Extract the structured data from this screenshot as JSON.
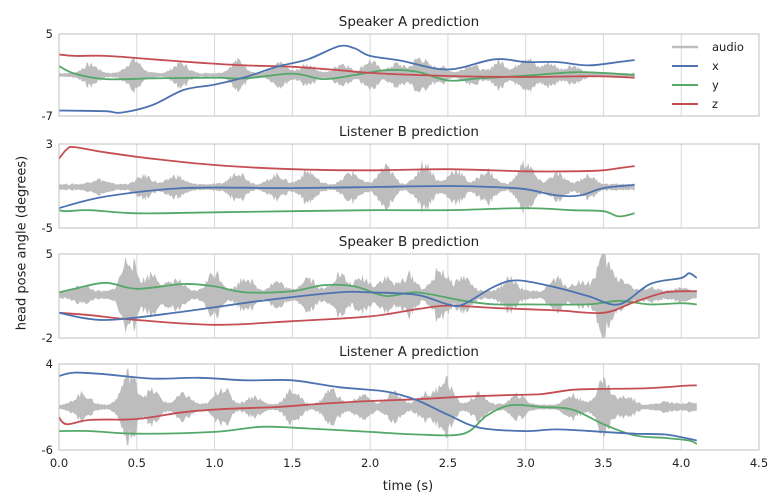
{
  "figure": {
    "ylabel": "head pose angle (degrees)",
    "xlabel": "time (s)",
    "legend": [
      "audio",
      "x",
      "y",
      "z"
    ]
  },
  "colors": {
    "audio": "#bdbdbd",
    "x": "#4c72b0",
    "y": "#55a868",
    "z": "#c44e52",
    "grid": "#d9d9d9",
    "frame": "#bfbfbf"
  },
  "chart_data": [
    {
      "type": "line",
      "title": "Speaker A prediction",
      "xlim": [
        0,
        4.5
      ],
      "ylim": [
        -7,
        5
      ],
      "xticks": [
        "0.0",
        "0.5",
        "1.0",
        "1.5",
        "2.0",
        "2.5",
        "3.0",
        "3.5",
        "4.0",
        "4.5"
      ],
      "yticks": [
        "5",
        "-7"
      ],
      "legend_position": "top-right",
      "audio": {
        "x_end": 3.7,
        "center": -1.0,
        "bursts": [
          [
            0.2,
            1.6
          ],
          [
            0.48,
            2.4
          ],
          [
            0.78,
            1.8
          ],
          [
            1.15,
            2.3
          ],
          [
            1.42,
            1.7
          ],
          [
            1.6,
            1.6
          ],
          [
            1.82,
            1.8
          ],
          [
            2.0,
            2.2
          ],
          [
            2.17,
            1.7
          ],
          [
            2.32,
            2.8
          ],
          [
            2.45,
            1.2
          ],
          [
            2.65,
            1.6
          ],
          [
            2.83,
            2.1
          ],
          [
            3.0,
            3.0
          ],
          [
            3.15,
            1.8
          ],
          [
            3.3,
            1.4
          ]
        ]
      },
      "series": [
        {
          "name": "x",
          "x": [
            0,
            0.3,
            0.4,
            0.6,
            0.8,
            1.0,
            1.2,
            1.4,
            1.6,
            1.8,
            1.9,
            2.0,
            2.2,
            2.5,
            2.8,
            3.0,
            3.2,
            3.4,
            3.6,
            3.7
          ],
          "y": [
            -6.2,
            -6.3,
            -6.5,
            -5.4,
            -3.2,
            -2.4,
            -1.3,
            0.2,
            1.3,
            3.2,
            2.9,
            1.8,
            1.1,
            -0.2,
            1.3,
            0.9,
            0.9,
            0.4,
            0.9,
            1.2
          ]
        },
        {
          "name": "y",
          "x": [
            0,
            0.1,
            0.3,
            0.6,
            1.0,
            1.2,
            1.5,
            1.7,
            1.9,
            2.1,
            2.3,
            2.5,
            2.7,
            3.0,
            3.3,
            3.5,
            3.7
          ],
          "y": [
            0.3,
            -0.8,
            -1.6,
            -1.5,
            -1.4,
            -1.5,
            -0.8,
            -1.6,
            -1.0,
            -0.3,
            -0.5,
            -1.8,
            -1.5,
            -1.1,
            -0.6,
            -0.7,
            -1.0
          ]
        },
        {
          "name": "z",
          "x": [
            0,
            0.1,
            0.3,
            0.6,
            0.9,
            1.2,
            1.5,
            1.8,
            2.0,
            2.3,
            2.6,
            3.0,
            3.3,
            3.5,
            3.7
          ],
          "y": [
            2.0,
            1.8,
            1.8,
            1.3,
            0.8,
            0.4,
            0.2,
            -0.3,
            -0.7,
            -1.0,
            -1.2,
            -1.3,
            -1.2,
            -1.2,
            -1.4
          ]
        }
      ]
    },
    {
      "type": "line",
      "title": "Listener B prediction",
      "xlim": [
        0,
        4.5
      ],
      "ylim": [
        -5,
        3
      ],
      "xticks": [
        "0.0",
        "0.5",
        "1.0",
        "1.5",
        "2.0",
        "2.5",
        "3.0",
        "3.5",
        "4.0",
        "4.5"
      ],
      "yticks": [
        "3",
        "-5"
      ],
      "audio": {
        "x_end": 3.7,
        "center": -1.1,
        "bursts": [
          [
            0.25,
            0.6
          ],
          [
            0.55,
            1.0
          ],
          [
            0.75,
            1.0
          ],
          [
            1.15,
            1.5
          ],
          [
            1.4,
            1.1
          ],
          [
            1.6,
            1.5
          ],
          [
            1.88,
            1.4
          ],
          [
            2.1,
            2.0
          ],
          [
            2.35,
            2.5
          ],
          [
            2.55,
            1.7
          ],
          [
            2.75,
            1.6
          ],
          [
            3.0,
            2.6
          ],
          [
            3.2,
            1.2
          ],
          [
            3.4,
            1.0
          ]
        ]
      },
      "series": [
        {
          "name": "x",
          "x": [
            0,
            0.3,
            0.8,
            1.5,
            2.0,
            2.5,
            2.8,
            3.0,
            3.2,
            3.35,
            3.5,
            3.7
          ],
          "y": [
            -3.1,
            -2.0,
            -1.2,
            -1.2,
            -1.1,
            -1.0,
            -1.1,
            -1.3,
            -1.9,
            -1.9,
            -1.2,
            -0.9
          ]
        },
        {
          "name": "y",
          "x": [
            0,
            0.05,
            0.2,
            0.5,
            1.0,
            1.5,
            2.0,
            2.5,
            3.0,
            3.3,
            3.5,
            3.6,
            3.7
          ],
          "y": [
            -3.3,
            -3.4,
            -3.3,
            -3.6,
            -3.5,
            -3.4,
            -3.3,
            -3.3,
            -3.1,
            -3.3,
            -3.4,
            -3.9,
            -3.6
          ]
        },
        {
          "name": "z",
          "x": [
            0,
            0.05,
            0.1,
            0.3,
            0.6,
            1.0,
            1.5,
            2.0,
            2.5,
            3.0,
            3.3,
            3.5,
            3.6,
            3.7
          ],
          "y": [
            1.6,
            2.5,
            2.7,
            2.2,
            1.6,
            1.0,
            0.6,
            0.5,
            0.6,
            0.4,
            0.4,
            0.5,
            0.7,
            0.9
          ]
        }
      ]
    },
    {
      "type": "line",
      "title": "Speaker B prediction",
      "xlim": [
        0,
        4.5
      ],
      "ylim": [
        -2,
        5
      ],
      "xticks": [
        "0.0",
        "0.5",
        "1.0",
        "1.5",
        "2.0",
        "2.5",
        "3.0",
        "3.5",
        "4.0",
        "4.5"
      ],
      "yticks": [
        "5",
        "-2"
      ],
      "audio": {
        "x_end": 4.1,
        "center": 1.6,
        "bursts": [
          [
            0.15,
            0.6
          ],
          [
            0.45,
            3.5
          ],
          [
            0.6,
            1.8
          ],
          [
            0.75,
            1.2
          ],
          [
            1.0,
            2.0
          ],
          [
            1.2,
            1.5
          ],
          [
            1.4,
            1.0
          ],
          [
            1.6,
            1.5
          ],
          [
            1.8,
            1.8
          ],
          [
            1.95,
            1.4
          ],
          [
            2.1,
            1.4
          ],
          [
            2.25,
            1.7
          ],
          [
            2.45,
            2.3
          ],
          [
            2.6,
            1.5
          ],
          [
            2.9,
            1.3
          ],
          [
            3.2,
            1.3
          ],
          [
            3.35,
            1.0
          ],
          [
            3.5,
            3.5
          ],
          [
            3.62,
            1.2
          ],
          [
            3.8,
            0.4
          ],
          [
            4.0,
            0.3
          ]
        ]
      },
      "series": [
        {
          "name": "x",
          "x": [
            0,
            0.3,
            0.8,
            1.3,
            1.8,
            2.0,
            2.3,
            2.5,
            2.6,
            2.8,
            2.95,
            3.2,
            3.4,
            3.6,
            3.8,
            4.0,
            4.05,
            4.1
          ],
          "y": [
            0.1,
            -0.5,
            0.2,
            1.1,
            1.8,
            1.8,
            1.6,
            0.8,
            0.8,
            2.3,
            2.8,
            2.2,
            1.5,
            0.8,
            2.5,
            3.0,
            3.4,
            3.0
          ]
        },
        {
          "name": "y",
          "x": [
            0,
            0.1,
            0.3,
            0.5,
            0.8,
            1.0,
            1.2,
            1.5,
            1.7,
            1.9,
            2.1,
            2.3,
            2.6,
            2.8,
            3.0,
            3.4,
            3.6,
            3.8,
            4.0,
            4.1
          ],
          "y": [
            1.8,
            2.1,
            2.6,
            2.1,
            2.5,
            2.3,
            1.8,
            1.9,
            2.4,
            2.3,
            1.5,
            1.8,
            1.1,
            0.8,
            0.8,
            0.8,
            1.1,
            0.8,
            0.9,
            0.8
          ]
        },
        {
          "name": "z",
          "x": [
            0,
            0.2,
            0.5,
            1.0,
            1.5,
            2.0,
            2.3,
            2.5,
            2.8,
            3.2,
            3.5,
            3.7,
            3.9,
            4.1
          ],
          "y": [
            0.1,
            -0.1,
            -0.5,
            -0.9,
            -0.6,
            -0.2,
            0.4,
            0.7,
            0.5,
            0.3,
            0.1,
            1.0,
            1.8,
            1.9
          ]
        }
      ]
    },
    {
      "type": "line",
      "title": "Listener A prediction",
      "xlim": [
        0,
        4.5
      ],
      "ylim": [
        -6,
        4
      ],
      "xticks": [
        "0.0",
        "0.5",
        "1.0",
        "1.5",
        "2.0",
        "2.5",
        "3.0",
        "3.5",
        "4.0",
        "4.5"
      ],
      "yticks": [
        "4",
        "-6"
      ],
      "audio": {
        "x_end": 4.1,
        "center": -1.0,
        "bursts": [
          [
            0.15,
            1.6
          ],
          [
            0.45,
            4.5
          ],
          [
            0.6,
            2.0
          ],
          [
            0.8,
            1.5
          ],
          [
            1.05,
            2.5
          ],
          [
            1.25,
            1.2
          ],
          [
            1.5,
            2.0
          ],
          [
            1.75,
            2.2
          ],
          [
            1.95,
            1.4
          ],
          [
            2.15,
            1.7
          ],
          [
            2.35,
            1.5
          ],
          [
            2.48,
            3.8
          ],
          [
            2.7,
            1.5
          ],
          [
            2.95,
            1.4
          ],
          [
            3.3,
            1.4
          ],
          [
            3.5,
            3.5
          ],
          [
            3.65,
            1.2
          ],
          [
            3.9,
            0.4
          ],
          [
            4.05,
            0.3
          ]
        ]
      },
      "series": [
        {
          "name": "x",
          "x": [
            0,
            0.1,
            0.3,
            0.6,
            0.9,
            1.2,
            1.5,
            1.8,
            2.1,
            2.3,
            2.5,
            2.7,
            3.0,
            3.2,
            3.5,
            3.7,
            3.9,
            4.05,
            4.1
          ],
          "y": [
            2.6,
            3.0,
            2.8,
            2.3,
            2.4,
            2.1,
            2.1,
            1.3,
            0.8,
            -0.2,
            -1.9,
            -3.4,
            -3.8,
            -3.6,
            -3.9,
            -4.1,
            -4.2,
            -4.7,
            -4.9
          ]
        },
        {
          "name": "y",
          "x": [
            0,
            0.2,
            0.5,
            1.0,
            1.3,
            1.6,
            2.0,
            2.3,
            2.6,
            2.75,
            2.9,
            3.1,
            3.3,
            3.5,
            3.7,
            3.9,
            4.05,
            4.1
          ],
          "y": [
            -3.8,
            -3.8,
            -4.1,
            -3.9,
            -3.3,
            -3.5,
            -3.9,
            -4.2,
            -4.1,
            -2.0,
            -0.8,
            -1.0,
            -1.3,
            -3.0,
            -4.3,
            -4.6,
            -4.9,
            -5.3
          ]
        },
        {
          "name": "z",
          "x": [
            0,
            0.05,
            0.2,
            0.5,
            0.8,
            1.1,
            1.4,
            1.7,
            2.0,
            2.3,
            2.6,
            2.9,
            3.1,
            3.3,
            3.5,
            3.8,
            4.05,
            4.1
          ],
          "y": [
            -2.2,
            -3.0,
            -2.5,
            -2.4,
            -1.6,
            -1.2,
            -1.0,
            -0.6,
            -0.3,
            -0.1,
            0.2,
            0.4,
            0.5,
            1.0,
            1.1,
            1.2,
            1.5,
            1.5
          ]
        }
      ]
    }
  ]
}
